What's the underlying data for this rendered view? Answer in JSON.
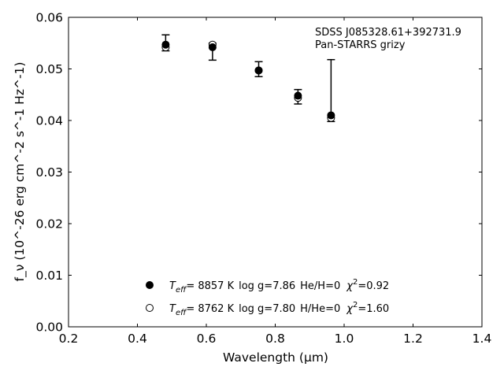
{
  "chart_data": {
    "type": "scatter",
    "xlabel": "Wavelength (μm)",
    "ylabel": "f_ν (10^-26 erg cm^-2 s^-1 Hz^-1)",
    "xlim": [
      0.2,
      1.4
    ],
    "ylim": [
      0.0,
      0.06
    ],
    "xticks": [
      0.2,
      0.4,
      0.6,
      0.8,
      1.0,
      1.2,
      1.4
    ],
    "xtick_labels": [
      "0.2",
      "0.4",
      "0.6",
      "0.8",
      "1.0",
      "1.2",
      "1.4"
    ],
    "yticks": [
      0.0,
      0.01,
      0.02,
      0.03,
      0.04,
      0.05,
      0.06
    ],
    "ytick_labels": [
      "0.00",
      "0.01",
      "0.02",
      "0.03",
      "0.04",
      "0.05",
      "0.06"
    ],
    "grid": false,
    "annotation": {
      "line1": "SDSS J085328.61+392731.9",
      "line2": "Pan-STARRS grizy"
    },
    "observed": {
      "x": [
        0.482,
        0.618,
        0.752,
        0.866,
        0.962
      ],
      "ylow": [
        0.0535,
        0.0517,
        0.0485,
        0.0432,
        0.0398
      ],
      "yhigh": [
        0.0566,
        0.055,
        0.0514,
        0.046,
        0.0518
      ]
    },
    "series": [
      {
        "marker": "filled",
        "x": [
          0.482,
          0.618,
          0.752,
          0.866,
          0.962
        ],
        "y": [
          0.0547,
          0.0542,
          0.0497,
          0.0448,
          0.041
        ],
        "label": {
          "teff_label": "T",
          "teff_sub": "eff",
          "teff_value": "=  8857 K",
          "logg": "log g=7.86",
          "comp": "He/H=0",
          "chi_symbol": "χ",
          "chi_sup": "2",
          "chi_value": "=0.92"
        }
      },
      {
        "marker": "open",
        "x": [
          0.482,
          0.618,
          0.752,
          0.866,
          0.962
        ],
        "y": [
          0.0542,
          0.0547,
          0.0497,
          0.0444,
          0.0405
        ],
        "label": {
          "teff_label": "T",
          "teff_sub": "eff",
          "teff_value": "=  8762 K",
          "logg": "log g=7.80",
          "comp": "H/He=0",
          "chi_symbol": "χ",
          "chi_sup": "2",
          "chi_value": "=1.60"
        }
      }
    ],
    "legend_position": "lower-center"
  }
}
